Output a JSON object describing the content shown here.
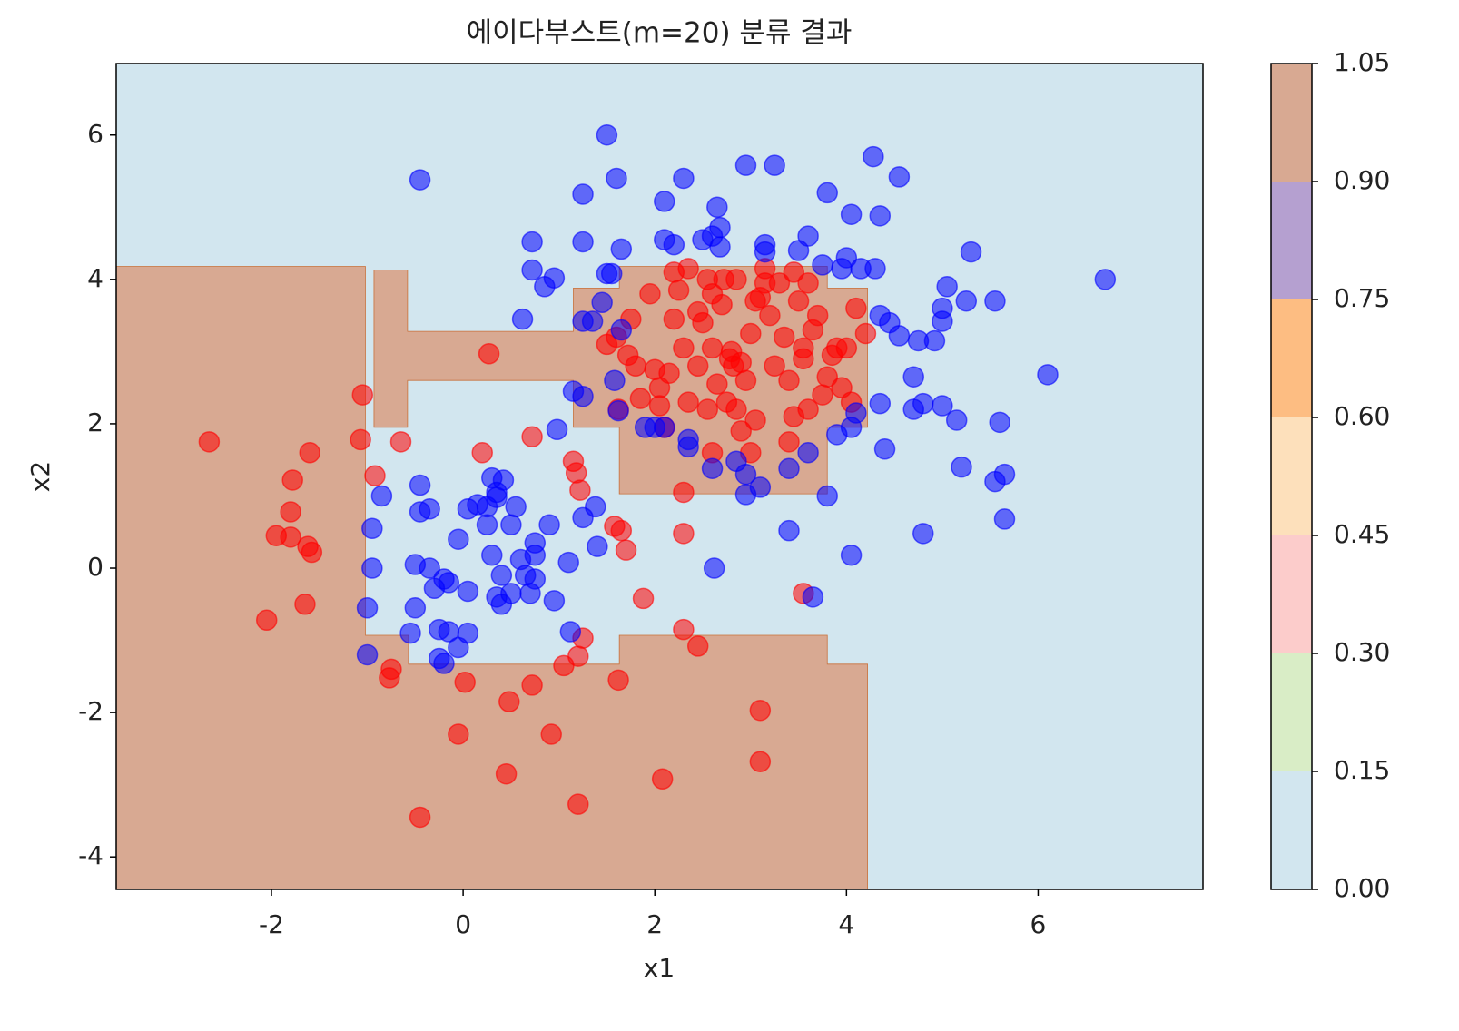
{
  "chart_data": {
    "type": "scatter",
    "title": "에이다부스트(m=20) 분류 결과",
    "x_label": "x1",
    "y_label": "x2",
    "xlim": [
      -3.62,
      7.72
    ],
    "ylim": [
      -4.45,
      6.99
    ],
    "xticks": [
      -2,
      0,
      2,
      4,
      6
    ],
    "yticks": [
      -4,
      -2,
      0,
      2,
      4,
      6
    ],
    "background_color": "#d2e6ef",
    "regions": [
      {
        "color": "#d8a992",
        "x": [
          -3.62,
          -1.02,
          -1.02,
          -0.57,
          -0.57,
          1.63,
          1.63,
          3.8,
          3.8,
          4.22,
          4.22,
          -3.62
        ],
        "y": [
          4.18,
          4.18,
          -0.93,
          -0.93,
          -1.33,
          -1.33,
          -0.93,
          -0.93,
          -1.33,
          -1.33,
          -4.45,
          -4.45
        ]
      },
      {
        "color": "#d8a992",
        "x": [
          -0.93,
          -0.58,
          -0.58,
          1.15,
          1.15,
          1.63,
          1.63,
          3.8,
          3.8,
          4.22,
          4.22,
          3.8,
          3.8,
          1.63,
          1.63,
          1.15,
          1.15,
          -0.58,
          -0.58,
          -0.93
        ],
        "y": [
          4.13,
          4.13,
          3.28,
          3.28,
          3.88,
          3.88,
          4.18,
          4.18,
          3.88,
          3.88,
          1.95,
          1.95,
          1.03,
          1.03,
          1.95,
          1.95,
          2.6,
          2.6,
          1.95,
          1.95
        ]
      }
    ],
    "series": [
      {
        "color": "#ff0000",
        "x": [
          -2.65,
          -1.6,
          -1.78,
          -1.8,
          -1.95,
          -1.8,
          -1.62,
          -1.58,
          -1.65,
          -2.05,
          -1.05,
          -1.07,
          -0.65,
          -0.92,
          0.27,
          0.2,
          0.72,
          1.15,
          1.18,
          1.22,
          1.58,
          1.65,
          1.7,
          1.88,
          2.3,
          2.3,
          2.45,
          1.25,
          1.2,
          1.05,
          1.62,
          0.72,
          0.48,
          0.02,
          -0.05,
          -0.75,
          -0.77,
          0.92,
          0.45,
          -0.45,
          1.2,
          2.08,
          3.1,
          3.1,
          3.55,
          2.3,
          1.5,
          1.6,
          1.62,
          1.72,
          1.75,
          1.8,
          1.85,
          1.95,
          2.05,
          2.1,
          2.15,
          2.2,
          2.25,
          2.2,
          2.35,
          2.45,
          2.5,
          2.55,
          2.6,
          2.65,
          2.7,
          2.72,
          2.8,
          2.82,
          2.85,
          2.9,
          2.95,
          3.0,
          3.05,
          3.1,
          3.15,
          3.2,
          3.25,
          3.3,
          3.35,
          3.4,
          3.45,
          3.5,
          3.55,
          3.6,
          3.65,
          3.7,
          3.75,
          3.8,
          3.85,
          3.9,
          3.95,
          4.0,
          4.05,
          4.1,
          4.2,
          2.45,
          2.35,
          2.05,
          2.0,
          2.6,
          2.75,
          3.0,
          3.4,
          2.3,
          2.55,
          2.85,
          3.05,
          3.15,
          3.45,
          3.6,
          3.55,
          2.6,
          2.9,
          2.78
        ],
        "y": [
          1.75,
          1.6,
          1.22,
          0.78,
          0.45,
          0.43,
          0.3,
          0.22,
          -0.5,
          -0.72,
          2.4,
          1.78,
          1.75,
          1.28,
          2.97,
          1.6,
          1.82,
          1.48,
          1.32,
          1.08,
          0.58,
          0.52,
          0.25,
          -0.42,
          0.48,
          -0.85,
          -1.08,
          -0.97,
          -1.22,
          -1.35,
          -1.55,
          -1.62,
          -1.85,
          -1.58,
          -2.3,
          -1.4,
          -1.52,
          -2.3,
          -2.85,
          -3.45,
          -3.27,
          -2.92,
          -1.97,
          -2.68,
          -0.35,
          1.05,
          3.1,
          3.2,
          2.2,
          2.95,
          3.45,
          2.8,
          2.35,
          3.8,
          2.5,
          1.95,
          2.7,
          3.45,
          3.85,
          4.1,
          4.15,
          3.55,
          3.4,
          2.2,
          3.05,
          2.55,
          3.65,
          4.0,
          3.0,
          2.8,
          2.2,
          1.9,
          2.6,
          3.25,
          2.05,
          3.75,
          4.15,
          3.5,
          2.8,
          3.95,
          3.2,
          2.6,
          2.1,
          3.7,
          2.9,
          2.2,
          3.3,
          3.5,
          2.4,
          2.65,
          2.95,
          3.05,
          2.5,
          3.05,
          2.3,
          3.6,
          3.25,
          2.8,
          2.3,
          2.25,
          2.75,
          1.6,
          2.3,
          1.6,
          1.75,
          3.05,
          4.0,
          4.0,
          3.7,
          3.95,
          4.1,
          3.95,
          3.05,
          3.8,
          2.85,
          2.9
        ]
      },
      {
        "color": "#0000ff",
        "x": [
          1.5,
          -0.45,
          1.25,
          1.6,
          2.3,
          2.95,
          3.25,
          4.28,
          4.55,
          3.8,
          2.65,
          2.1,
          4.05,
          4.35,
          0.72,
          1.25,
          1.65,
          2.1,
          2.2,
          2.5,
          2.6,
          2.68,
          2.68,
          3.15,
          3.15,
          3.5,
          3.6,
          3.75,
          3.95,
          4.0,
          4.15,
          4.3,
          5.3,
          6.7,
          0.72,
          0.95,
          0.85,
          1.5,
          1.55,
          1.35,
          1.45,
          1.65,
          1.25,
          0.62,
          4.35,
          4.45,
          4.55,
          4.75,
          4.92,
          5.0,
          5.0,
          5.05,
          5.25,
          5.55,
          4.7,
          6.1,
          1.58,
          1.15,
          1.25,
          1.62,
          0.98,
          1.9,
          2.0,
          2.1,
          2.35,
          2.35,
          2.6,
          2.85,
          2.95,
          2.95,
          3.1,
          3.4,
          3.6,
          3.8,
          3.9,
          4.05,
          4.1,
          4.35,
          4.4,
          4.7,
          4.8,
          5.0,
          5.15,
          5.6,
          5.2,
          5.55,
          5.65,
          5.65,
          4.8,
          4.05,
          3.4,
          2.62,
          3.65,
          -0.45,
          -0.85,
          -0.95,
          -0.95,
          -1.0,
          -1.0,
          -0.45,
          -0.35,
          -0.5,
          -0.35,
          -0.3,
          -0.2,
          -0.15,
          -0.5,
          -0.55,
          -0.25,
          -0.15,
          -0.25,
          -0.2,
          -0.05,
          0.05,
          0.05,
          -0.05,
          0.05,
          0.15,
          0.25,
          0.35,
          0.35,
          0.3,
          0.42,
          0.55,
          0.25,
          0.5,
          0.3,
          0.6,
          0.75,
          0.75,
          0.9,
          0.4,
          0.5,
          0.4,
          0.35,
          0.65,
          0.75,
          0.7,
          0.95,
          1.1,
          1.25,
          1.38,
          1.4,
          1.12
        ],
        "y": [
          6.0,
          5.38,
          5.18,
          5.4,
          5.4,
          5.58,
          5.58,
          5.7,
          5.42,
          5.2,
          5.0,
          5.08,
          4.9,
          4.88,
          4.52,
          4.52,
          4.42,
          4.55,
          4.48,
          4.55,
          4.6,
          4.45,
          4.72,
          4.48,
          4.38,
          4.4,
          4.6,
          4.2,
          4.15,
          4.3,
          4.15,
          4.15,
          4.38,
          4.0,
          4.13,
          4.02,
          3.9,
          4.08,
          4.08,
          3.42,
          3.68,
          3.3,
          3.42,
          3.45,
          3.5,
          3.4,
          3.22,
          3.15,
          3.15,
          3.42,
          3.6,
          3.9,
          3.7,
          3.7,
          2.65,
          2.68,
          2.6,
          2.45,
          2.38,
          2.18,
          1.92,
          1.95,
          1.95,
          1.95,
          1.78,
          1.68,
          1.38,
          1.48,
          1.3,
          1.02,
          1.12,
          1.38,
          1.6,
          1.0,
          1.85,
          1.95,
          2.15,
          2.28,
          1.65,
          2.2,
          2.28,
          2.25,
          2.05,
          2.02,
          1.4,
          1.2,
          1.3,
          0.68,
          0.48,
          0.18,
          0.52,
          0.0,
          -0.4,
          1.15,
          1.0,
          0.55,
          0.0,
          -0.55,
          -1.2,
          0.78,
          0.82,
          0.05,
          0.0,
          -0.28,
          -0.15,
          -0.2,
          -0.55,
          -0.9,
          -0.85,
          -0.88,
          -1.25,
          -1.32,
          -1.1,
          -0.9,
          -0.32,
          0.4,
          0.82,
          0.88,
          0.85,
          1.05,
          0.98,
          1.25,
          1.22,
          0.85,
          0.6,
          0.6,
          0.18,
          0.12,
          0.18,
          0.35,
          0.6,
          -0.1,
          -0.35,
          -0.5,
          -0.4,
          -0.1,
          -0.15,
          -0.35,
          -0.45,
          0.08,
          0.7,
          0.85,
          0.3,
          -0.88
        ]
      }
    ],
    "colorbar": {
      "ticks": [
        {
          "value": 0,
          "label": "0.00"
        },
        {
          "value": 0.15,
          "label": "0.15"
        },
        {
          "value": 0.3,
          "label": "0.30"
        },
        {
          "value": 0.45,
          "label": "0.45"
        },
        {
          "value": 0.6,
          "label": "0.60"
        },
        {
          "value": 0.75,
          "label": "0.75"
        },
        {
          "value": 0.9,
          "label": "0.90"
        },
        {
          "value": 1.05,
          "label": "1.05"
        }
      ],
      "colors": [
        "#d2e6ef",
        "#d9edc6",
        "#fccccb",
        "#fde0bb",
        "#fdbd82",
        "#b5a0d0",
        "#d8a992"
      ]
    }
  }
}
